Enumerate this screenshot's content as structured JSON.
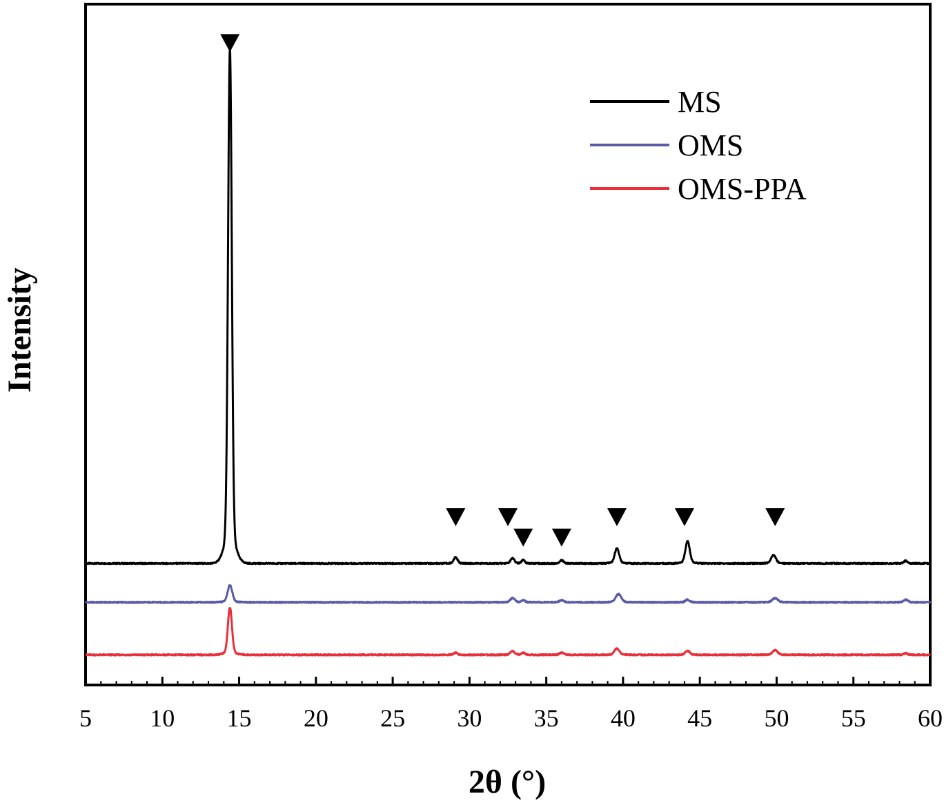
{
  "chart_data": {
    "type": "line",
    "title": "",
    "xlabel": "2θ (°)",
    "ylabel": "Intensity",
    "xlim": [
      5,
      60
    ],
    "x_ticks": [
      5,
      10,
      15,
      20,
      25,
      30,
      35,
      40,
      45,
      50,
      55,
      60
    ],
    "y_ticks_shown": false,
    "grid": false,
    "legend_position": "top-right",
    "colors": {
      "MS": "#000000",
      "OMS": "#5a5aa8",
      "OMS-PPA": "#e8303a",
      "frame": "#000000"
    },
    "series": [
      {
        "name": "MS",
        "baseline": 0.0,
        "peaks": [
          {
            "x": 14.4,
            "height": 100.0,
            "width": 0.12
          },
          {
            "x": 29.1,
            "height": 1.2,
            "width": 0.12
          },
          {
            "x": 32.8,
            "height": 1.0,
            "width": 0.12
          },
          {
            "x": 33.5,
            "height": 0.7,
            "width": 0.1
          },
          {
            "x": 36.0,
            "height": 0.6,
            "width": 0.12
          },
          {
            "x": 39.6,
            "height": 2.9,
            "width": 0.14
          },
          {
            "x": 44.2,
            "height": 4.3,
            "width": 0.14
          },
          {
            "x": 49.8,
            "height": 1.6,
            "width": 0.15
          },
          {
            "x": 58.4,
            "height": 0.5,
            "width": 0.12
          }
        ]
      },
      {
        "name": "OMS",
        "baseline": -8.0,
        "peaks": [
          {
            "x": 14.4,
            "height": 3.3,
            "width": 0.15
          },
          {
            "x": 32.8,
            "height": 0.8,
            "width": 0.15
          },
          {
            "x": 33.5,
            "height": 0.4,
            "width": 0.12
          },
          {
            "x": 36.0,
            "height": 0.4,
            "width": 0.14
          },
          {
            "x": 39.7,
            "height": 1.6,
            "width": 0.18
          },
          {
            "x": 44.2,
            "height": 0.5,
            "width": 0.14
          },
          {
            "x": 49.9,
            "height": 0.8,
            "width": 0.18
          },
          {
            "x": 58.4,
            "height": 0.5,
            "width": 0.14
          }
        ]
      },
      {
        "name": "OMS-PPA",
        "baseline": -18.8,
        "peaks": [
          {
            "x": 14.4,
            "height": 9.2,
            "width": 0.13
          },
          {
            "x": 29.1,
            "height": 0.4,
            "width": 0.12
          },
          {
            "x": 32.8,
            "height": 0.7,
            "width": 0.14
          },
          {
            "x": 33.5,
            "height": 0.4,
            "width": 0.12
          },
          {
            "x": 36.0,
            "height": 0.4,
            "width": 0.14
          },
          {
            "x": 39.6,
            "height": 1.2,
            "width": 0.16
          },
          {
            "x": 44.2,
            "height": 0.8,
            "width": 0.14
          },
          {
            "x": 49.9,
            "height": 0.9,
            "width": 0.16
          },
          {
            "x": 58.4,
            "height": 0.3,
            "width": 0.12
          }
        ]
      }
    ],
    "markers": {
      "symbol": "▼",
      "points": [
        {
          "x": 14.4,
          "y": 107.0
        },
        {
          "x": 29.1,
          "y": 9.5
        },
        {
          "x": 32.5,
          "y": 9.5
        },
        {
          "x": 33.5,
          "y": 5.3
        },
        {
          "x": 36.0,
          "y": 5.3
        },
        {
          "x": 39.6,
          "y": 9.5
        },
        {
          "x": 44.0,
          "y": 9.5
        },
        {
          "x": 49.9,
          "y": 9.5
        }
      ]
    },
    "ylim": [
      -25,
      115
    ]
  }
}
